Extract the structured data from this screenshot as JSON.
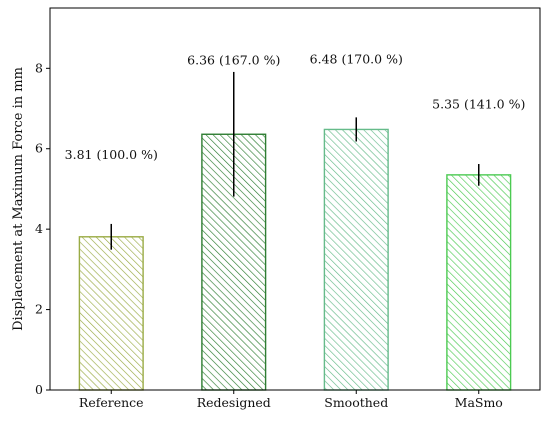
{
  "chart_data": {
    "type": "bar",
    "title": "",
    "xlabel": "",
    "ylabel": "Displacement at Maximum Force in mm",
    "ylim": [
      0,
      9.5
    ],
    "yticks": [
      0,
      2,
      4,
      6,
      8
    ],
    "grid": false,
    "legend": "none",
    "categories": [
      "Reference",
      "Redesigned",
      "Smoothed",
      "MaSmo"
    ],
    "values": [
      3.81,
      6.36,
      6.48,
      5.35
    ],
    "errors": [
      0.32,
      1.55,
      0.3,
      0.27
    ],
    "annotations": [
      "3.81 (100.0 %)",
      "6.36 (167.0 %)",
      "6.48 (170.0 %)",
      "5.35 (141.0 %)"
    ],
    "annotation_y": [
      5.75,
      8.1,
      8.12,
      7.0
    ],
    "colors": [
      "#9aab45",
      "#2e7d32",
      "#66bb8a",
      "#4cca52"
    ]
  }
}
